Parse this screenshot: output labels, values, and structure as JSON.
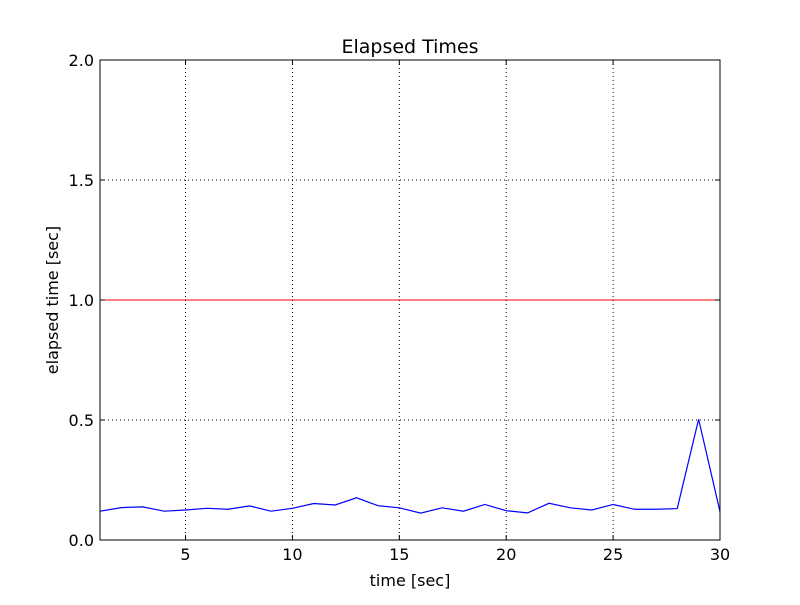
{
  "chart_data": {
    "type": "line",
    "title": "Elapsed Times",
    "xlabel": "time [sec]",
    "ylabel": "elapsed time [sec]",
    "xlim": [
      1,
      30
    ],
    "ylim": [
      0.0,
      2.0
    ],
    "xticks": [
      5,
      10,
      15,
      20,
      25,
      30
    ],
    "xtick_labels": [
      "5",
      "10",
      "15",
      "20",
      "25",
      "30"
    ],
    "yticks": [
      0.0,
      0.5,
      1.0,
      1.5,
      2.0
    ],
    "ytick_labels": [
      "0.0",
      "0.5",
      "1.0",
      "1.5",
      "2.0"
    ],
    "grid": true,
    "legend": "none",
    "series": [
      {
        "color": "#0000ff",
        "x": [
          1,
          2,
          3,
          4,
          5,
          6,
          7,
          8,
          9,
          10,
          11,
          12,
          13,
          14,
          15,
          16,
          17,
          18,
          19,
          20,
          21,
          22,
          23,
          24,
          25,
          26,
          27,
          28,
          29,
          30
        ],
        "values": [
          0.12,
          0.135,
          0.138,
          0.12,
          0.125,
          0.132,
          0.128,
          0.142,
          0.12,
          0.132,
          0.152,
          0.146,
          0.176,
          0.143,
          0.134,
          0.112,
          0.134,
          0.12,
          0.148,
          0.122,
          0.113,
          0.153,
          0.134,
          0.125,
          0.148,
          0.128,
          0.128,
          0.131,
          0.503,
          0.118
        ]
      }
    ],
    "reference_lines": [
      {
        "orientation": "horizontal",
        "y": 1.0,
        "color": "#ff0000"
      }
    ]
  }
}
